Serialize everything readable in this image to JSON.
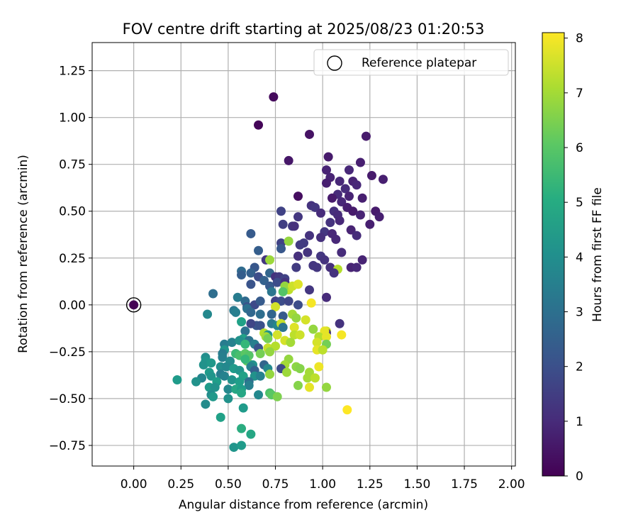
{
  "chart_data": {
    "type": "scatter",
    "title": "FOV centre drift starting at 2025/08/23 01:20:53",
    "xlabel": "Angular distance from reference (arcmin)",
    "ylabel": "Rotation from reference (arcmin)",
    "xlim": [
      -0.22,
      2.02
    ],
    "ylim": [
      -0.86,
      1.4
    ],
    "xticks": [
      "0.00",
      "0.25",
      "0.50",
      "0.75",
      "1.00",
      "1.25",
      "1.50",
      "1.75",
      "2.00"
    ],
    "yticks": [
      "−0.75",
      "−0.50",
      "−0.25",
      "0.00",
      "0.25",
      "0.50",
      "0.75",
      "1.00",
      "1.25"
    ],
    "grid": true,
    "legend": {
      "position": "top-right",
      "entries": [
        "Reference platepar"
      ]
    },
    "reference_point": {
      "x": 0.0,
      "y": 0.0,
      "hours": 0
    },
    "colorbar": {
      "label": "Hours from first FF file",
      "min": 0,
      "max": 8.1,
      "ticks": [
        "0",
        "1",
        "2",
        "3",
        "4",
        "5",
        "6",
        "7",
        "8"
      ],
      "colormap": "viridis"
    },
    "points": [
      [
        0.74,
        1.11,
        0.2
      ],
      [
        0.66,
        0.96,
        0.1
      ],
      [
        0.93,
        0.91,
        0.4
      ],
      [
        1.23,
        0.9,
        0.6
      ],
      [
        0.82,
        0.77,
        0.5
      ],
      [
        1.03,
        0.79,
        0.6
      ],
      [
        1.2,
        0.76,
        0.7
      ],
      [
        1.02,
        0.72,
        0.8
      ],
      [
        1.14,
        0.72,
        0.9
      ],
      [
        1.26,
        0.69,
        0.6
      ],
      [
        1.32,
        0.67,
        0.7
      ],
      [
        1.04,
        0.68,
        0.8
      ],
      [
        1.09,
        0.66,
        0.9
      ],
      [
        1.16,
        0.66,
        0.8
      ],
      [
        1.02,
        0.65,
        0.7
      ],
      [
        1.12,
        0.62,
        1.0
      ],
      [
        1.18,
        0.64,
        0.9
      ],
      [
        1.08,
        0.59,
        1.0
      ],
      [
        0.87,
        0.58,
        0.3
      ],
      [
        1.05,
        0.57,
        0.6
      ],
      [
        1.14,
        0.58,
        0.8
      ],
      [
        1.21,
        0.57,
        0.7
      ],
      [
        1.1,
        0.55,
        0.9
      ],
      [
        1.13,
        0.52,
        0.7
      ],
      [
        1.06,
        0.5,
        1.1
      ],
      [
        1.08,
        0.48,
        1.0
      ],
      [
        1.16,
        0.5,
        0.6
      ],
      [
        1.28,
        0.5,
        0.6
      ],
      [
        1.2,
        0.48,
        0.8
      ],
      [
        1.3,
        0.47,
        0.7
      ],
      [
        0.94,
        0.53,
        1.2
      ],
      [
        0.96,
        0.52,
        1.3
      ],
      [
        0.99,
        0.49,
        1.0
      ],
      [
        0.78,
        0.5,
        1.6
      ],
      [
        0.87,
        0.47,
        1.3
      ],
      [
        1.04,
        0.44,
        1.2
      ],
      [
        1.09,
        0.45,
        0.9
      ],
      [
        1.15,
        0.4,
        0.8
      ],
      [
        1.25,
        0.43,
        0.7
      ],
      [
        0.79,
        0.43,
        1.5
      ],
      [
        0.84,
        0.42,
        1.4
      ],
      [
        0.85,
        0.42,
        1.1
      ],
      [
        1.01,
        0.39,
        1.3
      ],
      [
        1.05,
        0.38,
        0.9
      ],
      [
        1.18,
        0.37,
        1.0
      ],
      [
        0.93,
        0.37,
        1.2
      ],
      [
        0.99,
        0.36,
        1.1
      ],
      [
        1.07,
        0.35,
        0.9
      ],
      [
        0.9,
        0.33,
        1.4
      ],
      [
        0.88,
        0.32,
        1.4
      ],
      [
        0.78,
        0.33,
        1.6
      ],
      [
        0.78,
        0.3,
        2.2
      ],
      [
        0.82,
        0.34,
        6.8
      ],
      [
        0.62,
        0.38,
        2.3
      ],
      [
        0.66,
        0.29,
        2.4
      ],
      [
        0.92,
        0.28,
        1.2
      ],
      [
        0.99,
        0.26,
        1.3
      ],
      [
        1.1,
        0.28,
        1.0
      ],
      [
        1.21,
        0.24,
        0.8
      ],
      [
        1.15,
        0.2,
        0.8
      ],
      [
        1.18,
        0.2,
        0.9
      ],
      [
        0.7,
        0.24,
        1.3
      ],
      [
        0.72,
        0.24,
        6.9
      ],
      [
        0.87,
        0.26,
        1.1
      ],
      [
        1.01,
        0.24,
        1.2
      ],
      [
        0.97,
        0.2,
        1.3
      ],
      [
        1.04,
        0.2,
        1.1
      ],
      [
        1.08,
        0.19,
        7.2
      ],
      [
        0.64,
        0.2,
        2.2
      ],
      [
        0.57,
        0.18,
        2.8
      ],
      [
        0.62,
        0.17,
        2.5
      ],
      [
        0.66,
        0.15,
        1.9
      ],
      [
        0.72,
        0.17,
        2.6
      ],
      [
        0.75,
        0.15,
        1.2
      ],
      [
        0.77,
        0.15,
        1.4
      ],
      [
        0.8,
        0.14,
        1.6
      ],
      [
        0.86,
        0.2,
        1.4
      ],
      [
        0.95,
        0.21,
        1.3
      ],
      [
        1.06,
        0.17,
        1.2
      ],
      [
        0.57,
        0.16,
        2.4
      ],
      [
        0.62,
        0.11,
        2.1
      ],
      [
        0.69,
        0.13,
        2.5
      ],
      [
        0.72,
        0.1,
        2.3
      ],
      [
        0.76,
        0.12,
        1.9
      ],
      [
        0.8,
        0.12,
        1.2
      ],
      [
        0.82,
        0.08,
        7.3
      ],
      [
        0.8,
        0.1,
        6.8
      ],
      [
        0.84,
        0.1,
        7.5
      ],
      [
        0.87,
        0.11,
        7.7
      ],
      [
        0.79,
        0.07,
        5.9
      ],
      [
        0.73,
        0.07,
        3.2
      ],
      [
        0.93,
        0.08,
        1.3
      ],
      [
        1.02,
        0.04,
        1.0
      ],
      [
        0.42,
        0.06,
        2.9
      ],
      [
        0.55,
        0.04,
        3.4
      ],
      [
        0.59,
        0.02,
        2.8
      ],
      [
        0.6,
        -0.01,
        2.1
      ],
      [
        0.64,
        0.0,
        1.8
      ],
      [
        0.67,
        0.02,
        2.3
      ],
      [
        0.75,
        0.02,
        1.6
      ],
      [
        0.78,
        0.02,
        1.9
      ],
      [
        0.82,
        0.02,
        1.7
      ],
      [
        0.87,
        0.0,
        1.9
      ],
      [
        0.94,
        0.01,
        8.0
      ],
      [
        0.75,
        -0.01,
        7.6
      ],
      [
        0.6,
        -0.02,
        3.0
      ],
      [
        0.53,
        -0.03,
        3.3
      ],
      [
        0.54,
        -0.04,
        3.5
      ],
      [
        0.62,
        -0.04,
        2.7
      ],
      [
        0.67,
        -0.05,
        2.9
      ],
      [
        0.73,
        -0.05,
        2.6
      ],
      [
        0.79,
        -0.06,
        2.3
      ],
      [
        0.84,
        -0.05,
        7.0
      ],
      [
        0.86,
        -0.07,
        6.8
      ],
      [
        0.91,
        -0.08,
        7.6
      ],
      [
        0.39,
        -0.05,
        3.8
      ],
      [
        0.57,
        -0.09,
        4.6
      ],
      [
        0.73,
        -0.1,
        3.3
      ],
      [
        0.76,
        -0.11,
        3.7
      ],
      [
        0.65,
        -0.11,
        2.2
      ],
      [
        0.67,
        -0.11,
        2.0
      ],
      [
        0.62,
        -0.1,
        1.7
      ],
      [
        0.78,
        -0.1,
        7.4
      ],
      [
        0.79,
        -0.12,
        3.1
      ],
      [
        0.85,
        -0.12,
        7.7
      ],
      [
        0.95,
        -0.13,
        6.8
      ],
      [
        1.02,
        -0.14,
        7.5
      ],
      [
        1.09,
        -0.1,
        1.2
      ],
      [
        0.59,
        -0.14,
        3.0
      ],
      [
        0.69,
        -0.15,
        7.2
      ],
      [
        0.71,
        -0.16,
        4.1
      ],
      [
        0.76,
        -0.16,
        7.6
      ],
      [
        0.7,
        -0.17,
        7.0
      ],
      [
        0.85,
        -0.16,
        7.3
      ],
      [
        1.02,
        -0.15,
        1.2
      ],
      [
        1.01,
        -0.14,
        7.8
      ],
      [
        0.98,
        -0.17,
        7.2
      ],
      [
        1.02,
        -0.17,
        7.8
      ],
      [
        1.1,
        -0.16,
        8.0
      ],
      [
        0.58,
        -0.18,
        4.6
      ],
      [
        0.61,
        -0.19,
        3.1
      ],
      [
        0.71,
        -0.18,
        6.4
      ],
      [
        0.8,
        -0.19,
        7.6
      ],
      [
        0.88,
        -0.16,
        7.5
      ],
      [
        0.83,
        -0.2,
        7.0
      ],
      [
        0.97,
        -0.2,
        7.6
      ],
      [
        1.02,
        -0.21,
        6.4
      ],
      [
        0.48,
        -0.21,
        3.4
      ],
      [
        0.52,
        -0.2,
        3.6
      ],
      [
        0.56,
        -0.19,
        4.1
      ],
      [
        0.59,
        -0.21,
        5.4
      ],
      [
        0.64,
        -0.21,
        3.5
      ],
      [
        0.66,
        -0.23,
        2.1
      ],
      [
        0.71,
        -0.23,
        7.4
      ],
      [
        0.75,
        -0.22,
        7.2
      ],
      [
        0.72,
        -0.25,
        6.8
      ],
      [
        0.48,
        -0.24,
        4.2
      ],
      [
        0.47,
        -0.26,
        3.4
      ],
      [
        0.54,
        -0.26,
        5.5
      ],
      [
        0.56,
        -0.27,
        5.7
      ],
      [
        0.59,
        -0.26,
        6.0
      ],
      [
        0.61,
        -0.27,
        5.9
      ],
      [
        0.67,
        -0.26,
        6.4
      ],
      [
        0.97,
        -0.24,
        7.8
      ],
      [
        1.0,
        -0.24,
        7.3
      ],
      [
        0.38,
        -0.28,
        4.0
      ],
      [
        0.38,
        -0.3,
        4.2
      ],
      [
        0.47,
        -0.28,
        3.5
      ],
      [
        0.51,
        -0.3,
        3.9
      ],
      [
        0.6,
        -0.3,
        6.2
      ],
      [
        0.59,
        -0.29,
        5.4
      ],
      [
        0.63,
        -0.32,
        4.1
      ],
      [
        0.69,
        -0.32,
        2.6
      ],
      [
        0.82,
        -0.29,
        6.8
      ],
      [
        0.8,
        -0.32,
        7.0
      ],
      [
        0.78,
        -0.34,
        1.8
      ],
      [
        0.37,
        -0.32,
        4.1
      ],
      [
        0.41,
        -0.31,
        4.3
      ],
      [
        0.46,
        -0.33,
        4.0
      ],
      [
        0.49,
        -0.33,
        3.8
      ],
      [
        0.53,
        -0.34,
        4.4
      ],
      [
        0.56,
        -0.35,
        4.2
      ],
      [
        0.62,
        -0.33,
        3.6
      ],
      [
        0.64,
        -0.35,
        2.5
      ],
      [
        0.71,
        -0.34,
        3.8
      ],
      [
        0.72,
        -0.37,
        6.8
      ],
      [
        0.81,
        -0.36,
        6.9
      ],
      [
        0.86,
        -0.33,
        6.7
      ],
      [
        0.88,
        -0.34,
        6.6
      ],
      [
        0.93,
        -0.36,
        7.0
      ],
      [
        0.98,
        -0.33,
        7.9
      ],
      [
        0.4,
        -0.36,
        4.4
      ],
      [
        0.41,
        -0.38,
        4.2
      ],
      [
        0.46,
        -0.37,
        3.4
      ],
      [
        0.48,
        -0.38,
        3.6
      ],
      [
        0.58,
        -0.38,
        4.6
      ],
      [
        0.64,
        -0.38,
        4.1
      ],
      [
        0.67,
        -0.38,
        3.6
      ],
      [
        0.36,
        -0.39,
        3.7
      ],
      [
        0.92,
        -0.39,
        7.0
      ],
      [
        0.96,
        -0.39,
        7.3
      ],
      [
        0.23,
        -0.4,
        4.4
      ],
      [
        0.33,
        -0.41,
        4.1
      ],
      [
        0.44,
        -0.41,
        4.5
      ],
      [
        0.52,
        -0.4,
        4.1
      ],
      [
        0.56,
        -0.41,
        4.5
      ],
      [
        0.61,
        -0.41,
        3.0
      ],
      [
        0.61,
        -0.43,
        3.5
      ],
      [
        0.87,
        -0.43,
        6.6
      ],
      [
        0.93,
        -0.44,
        7.8
      ],
      [
        1.02,
        -0.44,
        6.8
      ],
      [
        0.4,
        -0.44,
        4.4
      ],
      [
        0.43,
        -0.44,
        4.1
      ],
      [
        0.5,
        -0.45,
        3.8
      ],
      [
        0.54,
        -0.45,
        4.8
      ],
      [
        0.57,
        -0.45,
        4.5
      ],
      [
        0.57,
        -0.47,
        4.8
      ],
      [
        0.41,
        -0.48,
        3.9
      ],
      [
        0.72,
        -0.47,
        5.8
      ],
      [
        0.73,
        -0.48,
        6.0
      ],
      [
        0.76,
        -0.49,
        6.5
      ],
      [
        0.66,
        -0.48,
        3.8
      ],
      [
        0.42,
        -0.49,
        4.3
      ],
      [
        0.5,
        -0.5,
        4.1
      ],
      [
        0.38,
        -0.53,
        3.9
      ],
      [
        0.58,
        -0.55,
        4.4
      ],
      [
        1.13,
        -0.56,
        8.1
      ],
      [
        0.46,
        -0.6,
        4.6
      ],
      [
        0.57,
        -0.66,
        5.0
      ],
      [
        0.62,
        -0.69,
        4.8
      ],
      [
        0.53,
        -0.76,
        4.2
      ],
      [
        0.57,
        -0.75,
        4.4
      ]
    ]
  }
}
